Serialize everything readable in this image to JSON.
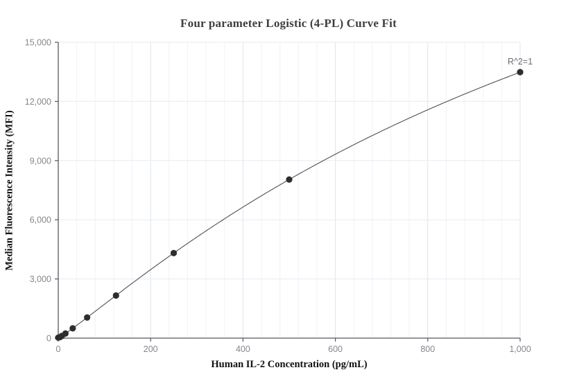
{
  "title": "Four parameter Logistic (4-PL) Curve Fit",
  "chart_data": {
    "type": "scatter",
    "title": "Four parameter Logistic (4-PL) Curve Fit",
    "xlabel": "Human IL-2 Concentration (pg/mL)",
    "ylabel": "Median Fluorescence Intensity (MFI)",
    "x": [
      0,
      3.9,
      7.8,
      15.6,
      31.3,
      62.5,
      125,
      250,
      500,
      1000
    ],
    "y": [
      25,
      51,
      109,
      233,
      497,
      1045,
      2162,
      4312,
      8041,
      13484
    ],
    "xlim": [
      0,
      1000
    ],
    "ylim": [
      0,
      15000
    ],
    "x_ticks": [
      0,
      200,
      400,
      600,
      800,
      1000
    ],
    "x_tick_labels": [
      "0",
      "200",
      "400",
      "600",
      "800",
      "1,000"
    ],
    "y_ticks": [
      0,
      3000,
      6000,
      9000,
      12000,
      15000
    ],
    "y_tick_labels": [
      "0",
      "3,000",
      "6,000",
      "9,000",
      "12,000",
      "15,000"
    ],
    "x_minor_gridline_step": 40,
    "grid": "vertical minor+major gridlines, horizontal major gridlines",
    "legend": "none",
    "fit_curve": {
      "model": "4PL",
      "A": 0,
      "B": 1.1,
      "C": 1400,
      "D": 33000
    },
    "annotation": {
      "text": "R^2=1",
      "at_x": 1000,
      "at_y": 13484
    }
  },
  "colors": {
    "background": "#ffffff",
    "title_text": "#3e3e3e",
    "axis_title_text": "#111111",
    "tick_label_text": "#85878c",
    "annotation_text": "#6a6c70",
    "axis_line": "#54565c",
    "grid_minor": "#f0f2f7",
    "grid_major_vertical": "#dde4ee",
    "grid_major_horizontal": "#e7ebf2",
    "curve_line": "#4f4f4f",
    "data_point": "#2d2d2d"
  }
}
